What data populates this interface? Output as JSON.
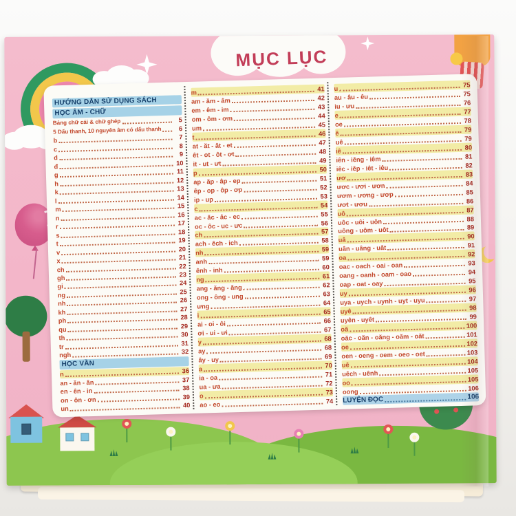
{
  "title": "MỤC LỤC",
  "colors": {
    "page_pink": "#f3b6c9",
    "panel_white": "#fcfbf6",
    "header_blue": "#a6d2e7",
    "header_text_navy": "#17406b",
    "entry_red": "#c2472b",
    "page_number_red": "#a4281f",
    "highlight_yellow": "#f2eca6",
    "title_crimson": "#c23d58"
  },
  "decorations": [
    "rainbow-icon",
    "cloud-icon",
    "sparkle-star-icon",
    "balloon-icon",
    "crescent-moon-icon",
    "girl-illustration",
    "tree-icon",
    "hill",
    "house-icon",
    "flower-icon",
    "bush-icon",
    "title-cloud"
  ],
  "columns": {
    "left": [
      {
        "t": "h",
        "l": "HƯỚNG DẪN SỬ DỤNG SÁCH"
      },
      {
        "t": "h",
        "l": "HỌC ÂM - CHỮ"
      },
      {
        "l": "Bảng chữ cái & chữ ghép",
        "p": "5",
        "sm": true
      },
      {
        "l": "5 Dấu thanh, 10 nguyên âm có dấu thanh",
        "p": "6",
        "sm": true
      },
      {
        "l": "b",
        "p": "7"
      },
      {
        "l": "c",
        "p": "8"
      },
      {
        "l": "d",
        "p": "9"
      },
      {
        "l": "đ",
        "p": "10"
      },
      {
        "l": "g",
        "p": "11"
      },
      {
        "l": "h",
        "p": "12"
      },
      {
        "l": "k",
        "p": "13"
      },
      {
        "l": "l",
        "p": "14"
      },
      {
        "l": "m",
        "p": "15"
      },
      {
        "l": "n",
        "p": "16"
      },
      {
        "l": "r",
        "p": "17"
      },
      {
        "l": "s",
        "p": "18"
      },
      {
        "l": "t",
        "p": "19"
      },
      {
        "l": "v",
        "p": "20"
      },
      {
        "l": "x",
        "p": "21"
      },
      {
        "l": "ch",
        "p": "22"
      },
      {
        "l": "gh",
        "p": "23"
      },
      {
        "l": "gi",
        "p": "24"
      },
      {
        "l": "ng",
        "p": "25"
      },
      {
        "l": "nh",
        "p": "26"
      },
      {
        "l": "kh",
        "p": "27"
      },
      {
        "l": "ph",
        "p": "28"
      },
      {
        "l": "qu",
        "p": "29"
      },
      {
        "l": "th",
        "p": "30"
      },
      {
        "l": "tr",
        "p": "31"
      },
      {
        "l": "ngh",
        "p": "32"
      },
      {
        "t": "h",
        "l": "HỌC VẦN"
      },
      {
        "l": "n",
        "p": "36",
        "hl": true
      },
      {
        "l": "an - ăn - ân",
        "p": "37"
      },
      {
        "l": "en - ên - in",
        "p": "38"
      },
      {
        "l": "on - ôn - ơn",
        "p": "39"
      },
      {
        "l": "un",
        "p": "40"
      }
    ],
    "middle": [
      {
        "l": "m",
        "p": "41",
        "hl": true
      },
      {
        "l": "am - ăm - âm",
        "p": "42"
      },
      {
        "l": "em - êm - im",
        "p": "43"
      },
      {
        "l": "om - ôm - ơm",
        "p": "44"
      },
      {
        "l": "um",
        "p": "45"
      },
      {
        "l": "t",
        "p": "46",
        "hl": true
      },
      {
        "l": "at - ăt - ât - et",
        "p": "47"
      },
      {
        "l": "êt - ot - ôt - ơt",
        "p": "48"
      },
      {
        "l": "it - ut - ưt",
        "p": "49"
      },
      {
        "l": "p",
        "p": "50",
        "hl": true
      },
      {
        "l": "ap - ăp - âp - ep",
        "p": "51"
      },
      {
        "l": "êp - op - ôp - ơp",
        "p": "52"
      },
      {
        "l": "ip - up",
        "p": "53"
      },
      {
        "l": "c",
        "p": "54",
        "hl": true
      },
      {
        "l": "ac - ăc - âc - ec",
        "p": "55"
      },
      {
        "l": "oc - ôc - uc - ưc",
        "p": "56"
      },
      {
        "l": "ch",
        "p": "57",
        "hl": true
      },
      {
        "l": "ach - êch - ich",
        "p": "58"
      },
      {
        "l": "nh",
        "p": "59",
        "hl": true
      },
      {
        "l": "anh",
        "p": "59"
      },
      {
        "l": "ênh - inh",
        "p": "60"
      },
      {
        "l": "ng",
        "p": "61",
        "hl": true
      },
      {
        "l": "ang - ăng - âng",
        "p": "62"
      },
      {
        "l": "ong - ông - ung",
        "p": "63"
      },
      {
        "l": "ưng",
        "p": "64"
      },
      {
        "l": "i",
        "p": "65",
        "hl": true
      },
      {
        "l": "ai - oi - ôi",
        "p": "66"
      },
      {
        "l": "ơi - ui - ưi",
        "p": "67"
      },
      {
        "l": "y",
        "p": "68",
        "hl": true
      },
      {
        "l": "ay",
        "p": "68"
      },
      {
        "l": "ây - uy",
        "p": "69"
      },
      {
        "l": "a",
        "p": "70",
        "hl": true
      },
      {
        "l": "ia - oa",
        "p": "71"
      },
      {
        "l": "ua - ưa",
        "p": "72"
      },
      {
        "l": "o",
        "p": "73",
        "hl": true
      },
      {
        "l": "ao - eo",
        "p": "74"
      }
    ],
    "right": [
      {
        "l": "u",
        "p": "75",
        "hl": true
      },
      {
        "l": "au - âu - êu",
        "p": "75"
      },
      {
        "l": "iu - ưu",
        "p": "76"
      },
      {
        "l": "e",
        "p": "77",
        "hl": true
      },
      {
        "l": "oe",
        "p": "78"
      },
      {
        "l": "ê",
        "p": "79",
        "hl": true
      },
      {
        "l": "uê",
        "p": "79"
      },
      {
        "l": "iê",
        "p": "80",
        "hl": true
      },
      {
        "l": "iên - iêng - iêm",
        "p": "81"
      },
      {
        "l": "iêc - iêp - iêt - iêu",
        "p": "82"
      },
      {
        "l": "ươ",
        "p": "83",
        "hl": true
      },
      {
        "l": "ươc - ươi - ươn",
        "p": "84"
      },
      {
        "l": "ươm - ương - ươp",
        "p": "85"
      },
      {
        "l": "ươt - ươu",
        "p": "86"
      },
      {
        "l": "uô",
        "p": "87",
        "hl": true
      },
      {
        "l": "uôc - uôi - uôn",
        "p": "88"
      },
      {
        "l": "uông - uôm - uôt",
        "p": "89"
      },
      {
        "l": "uâ",
        "p": "90",
        "hl": true
      },
      {
        "l": "uân - uâng - uât",
        "p": "91"
      },
      {
        "l": "oa",
        "p": "92",
        "hl": true
      },
      {
        "l": "oac - oach - oai - oan",
        "p": "93"
      },
      {
        "l": "oang - oanh - oam - oao",
        "p": "94"
      },
      {
        "l": "oap - oat - oay",
        "p": "95"
      },
      {
        "l": "uy",
        "p": "96",
        "hl": true
      },
      {
        "l": "uya - uych - uynh - uyt - uyu",
        "p": "97"
      },
      {
        "l": "uyê",
        "p": "98",
        "hl": true
      },
      {
        "l": "uyên - uyêt",
        "p": "99"
      },
      {
        "l": "oă",
        "p": "100",
        "hl": true
      },
      {
        "l": "oăc - oăn - oăng - oăm - oăt",
        "p": "101"
      },
      {
        "l": "oe",
        "p": "102",
        "hl": true
      },
      {
        "l": "oen - oeng - oem - oeo - oet",
        "p": "103"
      },
      {
        "l": "uê",
        "p": "104",
        "hl": true
      },
      {
        "l": "uêch - uênh",
        "p": "105"
      },
      {
        "l": "oo",
        "p": "105",
        "hl": true
      },
      {
        "l": "oong",
        "p": "106"
      },
      {
        "l": "LUYỆN ĐỌC",
        "p": "106",
        "blue": true
      }
    ]
  }
}
